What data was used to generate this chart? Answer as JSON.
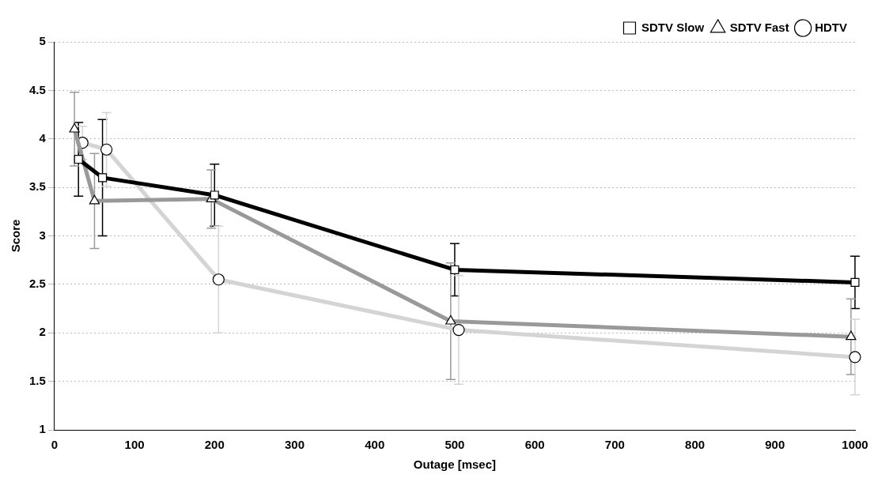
{
  "chart_data": {
    "type": "line",
    "xlabel": "Outage [msec]",
    "ylabel": "Score",
    "xlim": [
      0,
      1000
    ],
    "xticks": [
      0,
      100,
      200,
      300,
      400,
      500,
      600,
      700,
      800,
      900,
      1000
    ],
    "ylim": [
      1,
      5
    ],
    "yticks": [
      1,
      1.5,
      2,
      2.5,
      3,
      3.5,
      4,
      4.5,
      5
    ],
    "grid": "y",
    "legend": "top right",
    "line_style": "solid",
    "series": [
      {
        "name": "SDTV Slow",
        "color": "#000000",
        "marker": "square",
        "x": [
          30,
          60,
          200,
          500,
          1000
        ],
        "values": [
          3.79,
          3.6,
          3.42,
          2.65,
          2.52
        ],
        "errors": [
          0.38,
          0.6,
          0.32,
          0.27,
          0.27
        ]
      },
      {
        "name": "SDTV Fast",
        "color": "#999999",
        "marker": "triangle",
        "x": [
          25,
          50,
          196,
          495,
          995
        ],
        "values": [
          4.1,
          3.36,
          3.38,
          2.12,
          1.96
        ],
        "errors": [
          0.38,
          0.49,
          0.3,
          0.6,
          0.39
        ]
      },
      {
        "name": "HDTV",
        "color": "#d4d4d4",
        "marker": "circle",
        "x": [
          35,
          65,
          205,
          505,
          1000
        ],
        "values": [
          3.96,
          3.89,
          2.55,
          2.03,
          1.75
        ],
        "errors": [
          0.17,
          0.38,
          0.55,
          0.56,
          0.39
        ]
      }
    ]
  }
}
